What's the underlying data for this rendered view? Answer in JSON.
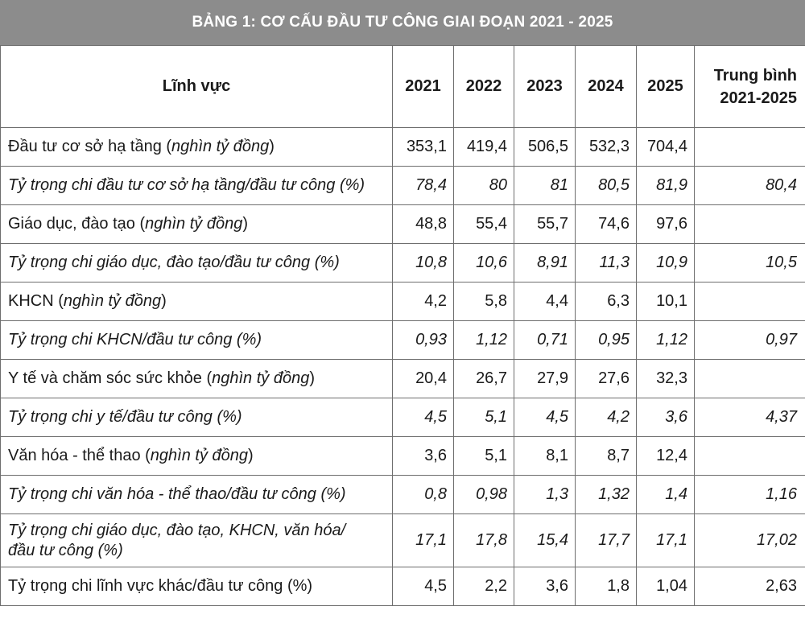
{
  "title": "BẢNG 1: CƠ CẤU ĐẦU TƯ CÔNG GIAI ĐOẠN 2021 - 2025",
  "headers": {
    "field": "Lĩnh vực",
    "years": [
      "2021",
      "2022",
      "2023",
      "2024",
      "2025"
    ],
    "avg_line1": "Trung bình",
    "avg_line2": "2021-2025"
  },
  "rows": [
    {
      "label": "Đầu tư cơ sở hạ tầng (",
      "unit": "nghìn tỷ đồng",
      "tail": ")",
      "values": [
        "353,1",
        "419,4",
        "506,5",
        "532,3",
        "704,4"
      ],
      "avg": ""
    },
    {
      "label": "Tỷ trọng chi đầu tư cơ sở hạ tầng/đầu tư công (%)",
      "values": [
        "78,4",
        "80",
        "81",
        "80,5",
        "81,9"
      ],
      "avg": "80,4"
    },
    {
      "label": "Giáo dục, đào tạo (",
      "unit": "nghìn tỷ đồng",
      "tail": ")",
      "values": [
        "48,8",
        "55,4",
        "55,7",
        "74,6",
        "97,6"
      ],
      "avg": ""
    },
    {
      "label": "Tỷ trọng chi giáo dục, đào tạo/đầu tư công (%)",
      "values": [
        "10,8",
        "10,6",
        "8,91",
        "11,3",
        "10,9"
      ],
      "avg": "10,5"
    },
    {
      "label": "KHCN (",
      "unit": "nghìn tỷ đồng",
      "tail": ")",
      "values": [
        "4,2",
        "5,8",
        "4,4",
        "6,3",
        "10,1"
      ],
      "avg": ""
    },
    {
      "label": "Tỷ trọng chi KHCN/đầu tư công (%)",
      "values": [
        "0,93",
        "1,12",
        "0,71",
        "0,95",
        "1,12"
      ],
      "avg": "0,97"
    },
    {
      "label": "Y tế và chăm sóc sức khỏe (",
      "unit": "nghìn tỷ đồng",
      "tail": ")",
      "values": [
        "20,4",
        "26,7",
        "27,9",
        "27,6",
        "32,3"
      ],
      "avg": ""
    },
    {
      "label": "Tỷ trọng chi y tế/đầu tư công (%)",
      "values": [
        "4,5",
        "5,1",
        "4,5",
        "4,2",
        "3,6"
      ],
      "avg": "4,37"
    },
    {
      "label": "Văn hóa - thể thao (",
      "unit": "nghìn tỷ đồng",
      "tail": ")",
      "values": [
        "3,6",
        "5,1",
        "8,1",
        "8,7",
        "12,4"
      ],
      "avg": ""
    },
    {
      "label": "Tỷ trọng chi văn hóa - thể thao/đầu tư công (%)",
      "values": [
        "0,8",
        "0,98",
        "1,3",
        "1,32",
        "1,4"
      ],
      "avg": "1,16"
    },
    {
      "label_line1": "Tỷ trọng chi giáo dục, đào tạo, KHCN, văn hóa/",
      "label_line2": "đầu tư công (%)",
      "values": [
        "17,1",
        "17,8",
        "15,4",
        "17,7",
        "17,1"
      ],
      "avg": "17,02"
    },
    {
      "label": "Tỷ trọng chi lĩnh vực khác/đầu tư công (%)",
      "values": [
        "4,5",
        "2,2",
        "3,6",
        "1,8",
        "1,04"
      ],
      "avg": "2,63"
    }
  ]
}
